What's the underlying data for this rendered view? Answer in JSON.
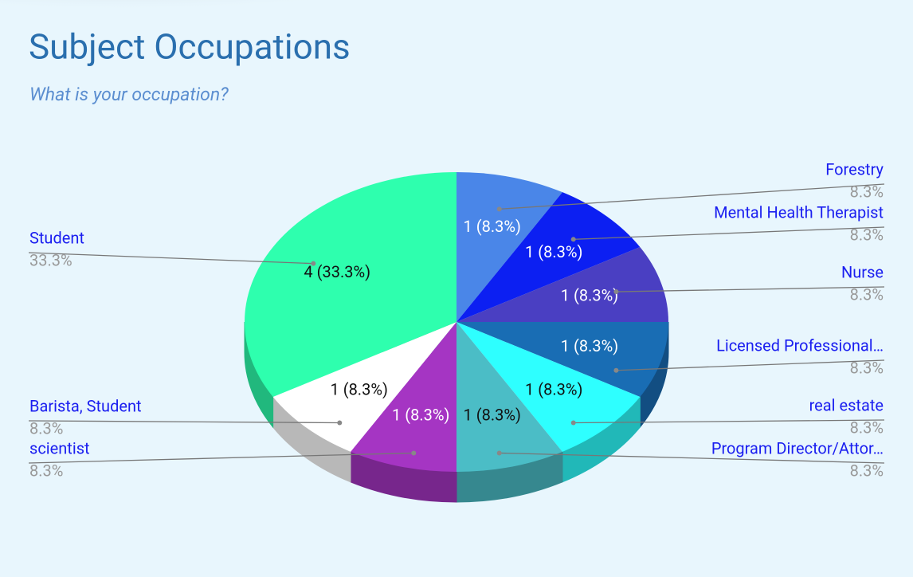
{
  "chart_data": {
    "type": "pie",
    "title": "Subject Occupations",
    "subtitle": "What is your occupation?",
    "categories": [
      "Forestry",
      "Mental Health Therapist",
      "Nurse",
      "Licensed Professional…",
      "real estate",
      "Program Director/Attor…",
      "scientist",
      "Barista, Student",
      "Student"
    ],
    "values": [
      1,
      1,
      1,
      1,
      1,
      1,
      1,
      1,
      4
    ],
    "value_labels": [
      "1 (8.3%)",
      "1 (8.3%)",
      "1 (8.3%)",
      "1 (8.3%)",
      "1 (8.3%)",
      "1 (8.3%)",
      "1 (8.3%)",
      "1 (8.3%)",
      "4 (33.3%)"
    ],
    "percent_labels": [
      "8.3%",
      "8.3%",
      "8.3%",
      "8.3%",
      "8.3%",
      "8.3%",
      "8.3%",
      "8.3%",
      "33.3%"
    ],
    "colors": [
      "#4a86e8",
      "#0c1ff2",
      "#4a3fc2",
      "#196db4",
      "#2effff",
      "#4bbdc6",
      "#a535c3",
      "#ffffff",
      "#2effae"
    ],
    "three_d": true
  }
}
